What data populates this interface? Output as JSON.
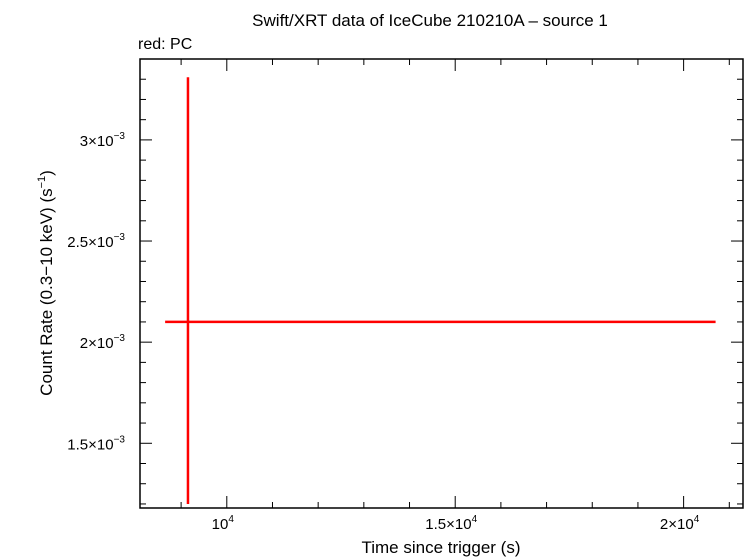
{
  "chart_data": {
    "type": "scatter",
    "title": "Swift/XRT data of IceCube 210210A – source 1",
    "subtitle": "red: PC",
    "xlabel": "Time since trigger (s)",
    "ylabel_main": "Count Rate (0.3−10 keV) (s",
    "ylabel_sup": "−1",
    "ylabel_tail": ")",
    "xlim": [
      8100,
      21300
    ],
    "ylim": [
      0.00118,
      0.0034
    ],
    "y_scale": "linear",
    "grid": false,
    "x_ticks": [
      {
        "value": 10000,
        "mant": "10",
        "exp": "4"
      },
      {
        "value": 15000,
        "mant": "1.5×10",
        "exp": "4"
      },
      {
        "value": 20000,
        "mant": "2×10",
        "exp": "4"
      }
    ],
    "y_ticks": [
      {
        "value": 0.0015,
        "mant": "1.5×10",
        "exp": "−3"
      },
      {
        "value": 0.002,
        "mant": "2×10",
        "exp": "−3"
      },
      {
        "value": 0.0025,
        "mant": "2.5×10",
        "exp": "−3"
      },
      {
        "value": 0.003,
        "mant": "3×10",
        "exp": "−3"
      }
    ],
    "series": [
      {
        "color": "#ff0000",
        "points": [
          {
            "x": 9150,
            "y": 0.0021,
            "xerr_lo": 8650,
            "xerr_hi": 20700,
            "yerr_lo": 0.0012,
            "yerr_hi": 0.00331
          }
        ]
      }
    ]
  }
}
